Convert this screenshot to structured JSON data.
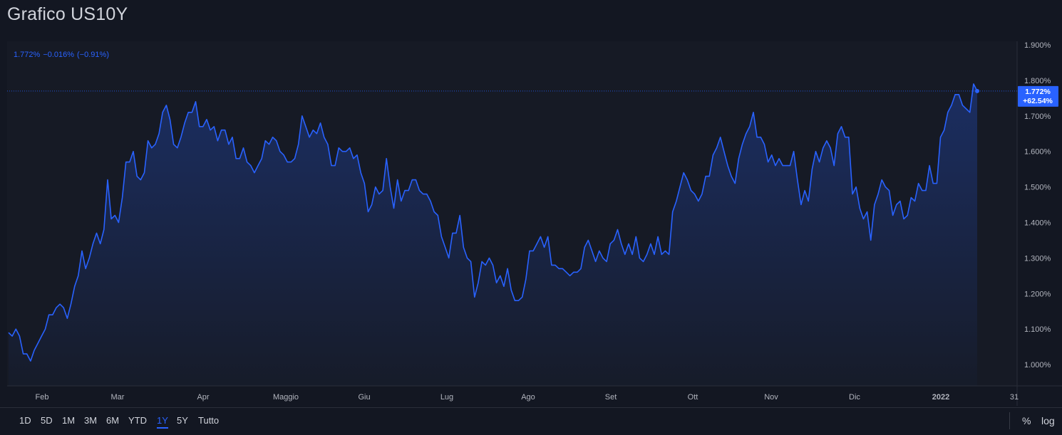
{
  "title": "Grafico US10Y",
  "legend": {
    "value": "1.772%",
    "change": "−0.016%",
    "change_pct": "(−0.91%)"
  },
  "last_badge": {
    "value": "1.772%",
    "pct": "+62.54%"
  },
  "colors": {
    "line": "#2962ff",
    "background": "#131722",
    "badge": "#2962ff",
    "axis_text": "#b2b5be"
  },
  "toolbar": {
    "ranges": [
      "1D",
      "5D",
      "1M",
      "3M",
      "6M",
      "YTD",
      "1Y",
      "5Y",
      "Tutto"
    ],
    "active_range": "1Y",
    "percent_label": "%",
    "log_label": "log"
  },
  "chart_data": {
    "type": "area",
    "title": "Grafico US10Y",
    "x_tick_labels": [
      "Feb",
      "Mar",
      "Apr",
      "Maggio",
      "Giu",
      "Lug",
      "Ago",
      "Set",
      "Ott",
      "Nov",
      "Dic",
      "2022",
      "31"
    ],
    "y_tick_labels": [
      "1.000%",
      "1.100%",
      "1.200%",
      "1.300%",
      "1.400%",
      "1.500%",
      "1.600%",
      "1.700%",
      "1.800%",
      "1.900%"
    ],
    "ylim": [
      0.94,
      1.91
    ],
    "y_scale": "linear",
    "grid": false,
    "series": [
      {
        "values": [
          1.09,
          1.08,
          1.1,
          1.08,
          1.03,
          1.03,
          1.01,
          1.04,
          1.06,
          1.08,
          1.1,
          1.14,
          1.14,
          1.16,
          1.17,
          1.16,
          1.13,
          1.17,
          1.22,
          1.25,
          1.32,
          1.27,
          1.3,
          1.34,
          1.37,
          1.34,
          1.38,
          1.52,
          1.41,
          1.42,
          1.4,
          1.47,
          1.57,
          1.57,
          1.6,
          1.53,
          1.52,
          1.54,
          1.63,
          1.61,
          1.62,
          1.65,
          1.71,
          1.73,
          1.69,
          1.62,
          1.61,
          1.64,
          1.68,
          1.71,
          1.71,
          1.74,
          1.67,
          1.67,
          1.69,
          1.66,
          1.67,
          1.63,
          1.66,
          1.66,
          1.62,
          1.64,
          1.58,
          1.58,
          1.61,
          1.57,
          1.56,
          1.54,
          1.56,
          1.58,
          1.63,
          1.62,
          1.64,
          1.63,
          1.6,
          1.59,
          1.57,
          1.57,
          1.58,
          1.62,
          1.7,
          1.67,
          1.64,
          1.66,
          1.65,
          1.68,
          1.64,
          1.62,
          1.56,
          1.56,
          1.61,
          1.6,
          1.6,
          1.61,
          1.58,
          1.59,
          1.54,
          1.51,
          1.43,
          1.45,
          1.5,
          1.48,
          1.49,
          1.58,
          1.5,
          1.44,
          1.52,
          1.46,
          1.49,
          1.49,
          1.52,
          1.52,
          1.49,
          1.48,
          1.48,
          1.46,
          1.43,
          1.42,
          1.36,
          1.33,
          1.3,
          1.37,
          1.37,
          1.42,
          1.33,
          1.3,
          1.29,
          1.19,
          1.23,
          1.29,
          1.28,
          1.3,
          1.28,
          1.23,
          1.25,
          1.22,
          1.27,
          1.21,
          1.18,
          1.18,
          1.19,
          1.24,
          1.32,
          1.32,
          1.34,
          1.36,
          1.33,
          1.36,
          1.28,
          1.28,
          1.27,
          1.27,
          1.26,
          1.25,
          1.26,
          1.26,
          1.27,
          1.33,
          1.35,
          1.32,
          1.29,
          1.32,
          1.3,
          1.29,
          1.34,
          1.35,
          1.38,
          1.34,
          1.31,
          1.34,
          1.31,
          1.36,
          1.3,
          1.29,
          1.31,
          1.34,
          1.31,
          1.36,
          1.31,
          1.32,
          1.31,
          1.43,
          1.46,
          1.5,
          1.54,
          1.52,
          1.49,
          1.48,
          1.46,
          1.48,
          1.53,
          1.53,
          1.59,
          1.61,
          1.64,
          1.6,
          1.56,
          1.53,
          1.51,
          1.58,
          1.62,
          1.65,
          1.67,
          1.71,
          1.64,
          1.64,
          1.62,
          1.57,
          1.59,
          1.56,
          1.58,
          1.56,
          1.56,
          1.56,
          1.6,
          1.52,
          1.45,
          1.49,
          1.46,
          1.55,
          1.6,
          1.57,
          1.61,
          1.63,
          1.61,
          1.56,
          1.65,
          1.67,
          1.64,
          1.64,
          1.48,
          1.5,
          1.44,
          1.41,
          1.43,
          1.35,
          1.45,
          1.48,
          1.52,
          1.5,
          1.49,
          1.42,
          1.45,
          1.46,
          1.41,
          1.42,
          1.47,
          1.46,
          1.51,
          1.49,
          1.49,
          1.56,
          1.51,
          1.51,
          1.64,
          1.66,
          1.71,
          1.73,
          1.76,
          1.76,
          1.73,
          1.72,
          1.71,
          1.79,
          1.77
        ]
      }
    ]
  }
}
